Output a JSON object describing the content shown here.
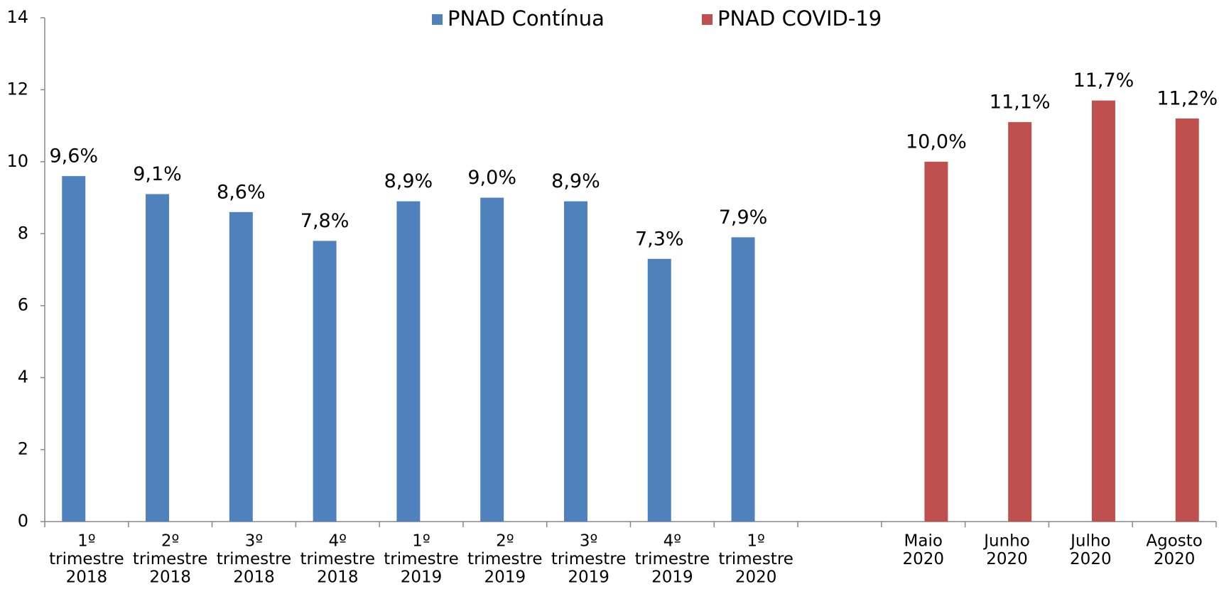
{
  "chart_data": {
    "type": "bar",
    "categories": [
      [
        "1º",
        "trimestre",
        "2018"
      ],
      [
        "2º",
        "trimestre",
        "2018"
      ],
      [
        "3º",
        "trimestre",
        "2018"
      ],
      [
        "4º",
        "trimestre",
        "2018"
      ],
      [
        "1º",
        "trimestre",
        "2019"
      ],
      [
        "2º",
        "trimestre",
        "2019"
      ],
      [
        "3º",
        "trimestre",
        "2019"
      ],
      [
        "4º",
        "trimestre",
        "2019"
      ],
      [
        "1º",
        "trimestre",
        "2020"
      ],
      null,
      [
        "Maio",
        "2020"
      ],
      [
        "Junho",
        "2020"
      ],
      [
        "Julho",
        "2020"
      ],
      [
        "Agosto",
        "2020"
      ]
    ],
    "series": [
      {
        "name": "PNAD Contínua",
        "color": "#4f81bd",
        "values": [
          9.6,
          9.1,
          8.6,
          7.8,
          8.9,
          9.0,
          8.9,
          7.3,
          7.9,
          null,
          null,
          null,
          null,
          null
        ],
        "value_labels": [
          "9,6%",
          "9,1%",
          "8,6%",
          "7,8%",
          "8,9%",
          "9,0%",
          "8,9%",
          "7,3%",
          "7,9%",
          null,
          null,
          null,
          null,
          null
        ]
      },
      {
        "name": "PNAD COVID-19",
        "color": "#c0504d",
        "values": [
          null,
          null,
          null,
          null,
          null,
          null,
          null,
          null,
          null,
          null,
          10.0,
          11.1,
          11.7,
          11.2
        ],
        "value_labels": [
          null,
          null,
          null,
          null,
          null,
          null,
          null,
          null,
          null,
          null,
          "10,0%",
          "11,1%",
          "11,7%",
          "11,2%"
        ]
      }
    ],
    "ylim": [
      0,
      14
    ],
    "yticks": [
      0,
      2,
      4,
      6,
      8,
      10,
      12,
      14
    ],
    "grid": false,
    "legend": "top"
  }
}
